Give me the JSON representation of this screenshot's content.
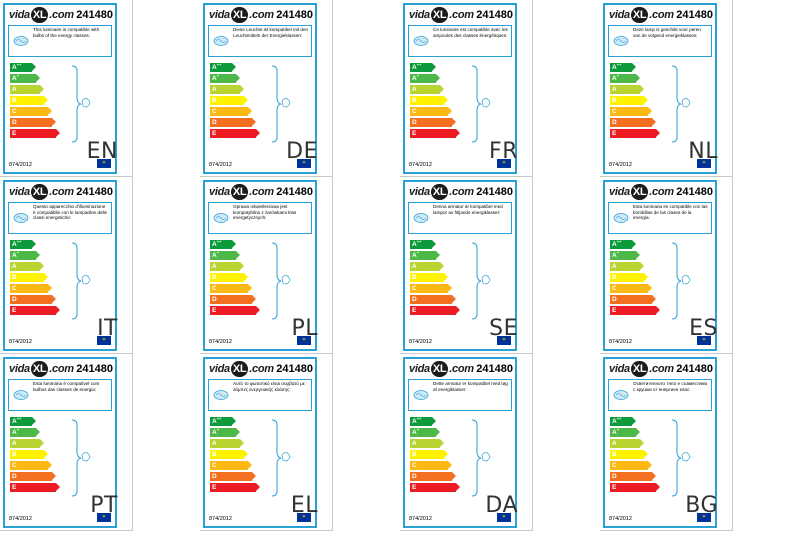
{
  "brand": {
    "prefix": "vida",
    "mark": "XL",
    "suffix": ".com"
  },
  "product_number": "241480",
  "regulation": "874/2012",
  "scale_classes": [
    {
      "base": "A",
      "plus": "++",
      "color": "#0d9a3a"
    },
    {
      "base": "A",
      "plus": "+",
      "color": "#4cb848"
    },
    {
      "base": "A",
      "plus": "",
      "color": "#b9d430"
    },
    {
      "base": "B",
      "plus": "",
      "color": "#fff200"
    },
    {
      "base": "C",
      "plus": "",
      "color": "#fdb913"
    },
    {
      "base": "D",
      "plus": "",
      "color": "#f37021"
    },
    {
      "base": "E",
      "plus": "",
      "color": "#ed1c24"
    }
  ],
  "labels": [
    {
      "lang": "EN",
      "text": "This luminaire is compatible with bulbs of the energy classes:"
    },
    {
      "lang": "DE",
      "text": "Diese Leuchte ist kompatibel mit den Leuchtmitteln der Energieklassen:"
    },
    {
      "lang": "FR",
      "text": "Ce luminaire est compatible avec les ampoules des classes énergétiques:"
    },
    {
      "lang": "NL",
      "text": "Deze lamp is geschikt voor peren van de volgend energieklasses:"
    },
    {
      "lang": "IT",
      "text": "Questo apparecchio d'illuminazione è compatibile con le lampadine delle classi energetiche:"
    },
    {
      "lang": "PL",
      "text": "Oprawa oświetleniowa jest kompatybilna z żarówkami klas energetycznych:"
    },
    {
      "lang": "SE",
      "text": "Denna armatur är kompatibel med lampor av följande energiklasser:"
    },
    {
      "lang": "ES",
      "text": "Esta luminaria es compatible con las bombillas de las clases de la energía:"
    },
    {
      "lang": "PT",
      "text": "Esta luminária é compatível com bulbos das classes de energia:"
    },
    {
      "lang": "EL",
      "text": "Αυτό το φωτιστικό είναι συμβατό με λάμπες ενεργειακής κλάσης:"
    },
    {
      "lang": "DA",
      "text": "Dette armatur er kompatibel med løg af energiklasser:"
    },
    {
      "lang": "BG",
      "text": "Осветителното тяло е съвместимо с крушки от енергиен клас:"
    }
  ]
}
